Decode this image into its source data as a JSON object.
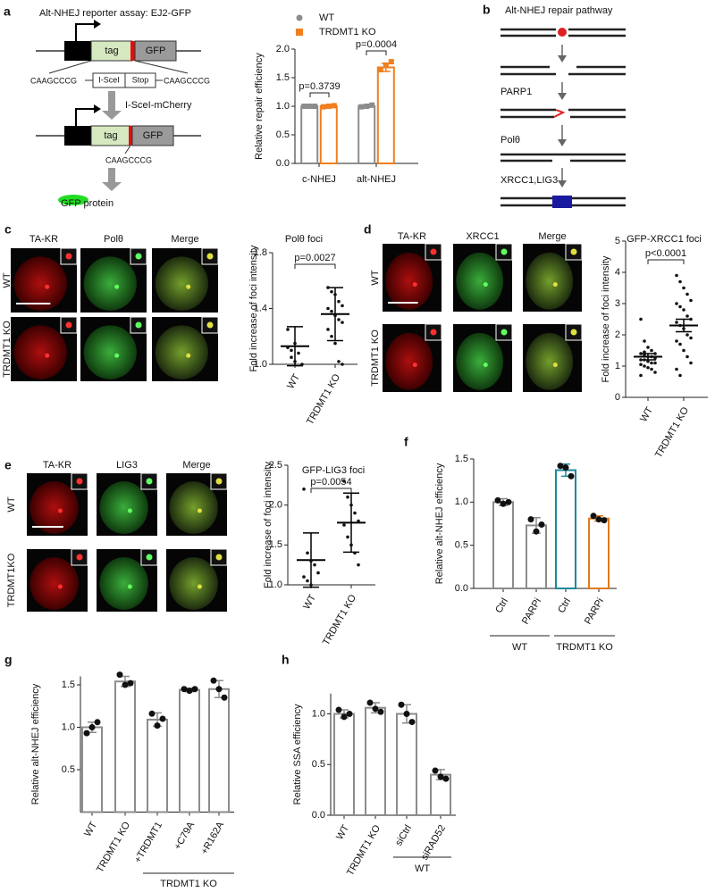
{
  "panel_letters": [
    "a",
    "b",
    "c",
    "d",
    "e",
    "f",
    "g",
    "h"
  ],
  "reporter": {
    "title": "Alt-NHEJ reporter assay: EJ2-GFP",
    "tag": "tag",
    "gfp": "GFP",
    "seq_left": "CAAGCCCG",
    "site": "I-SceI",
    "stop": "Stop",
    "seq_right": "CAAGCCCG",
    "enzyme": "I-SceI-mCherry",
    "tag2": "tag",
    "gfp2": "GFP",
    "seq_joined": "CAAGCCCG",
    "protein": "GFP protein"
  },
  "pathway": {
    "title": "Alt-NHEJ repair pathway",
    "steps": [
      "PARP1",
      "Polθ",
      "XRCC1,LIG3"
    ]
  },
  "imaging": [
    {
      "columns": [
        "TA-KR",
        "Polθ",
        "Merge"
      ],
      "rows": [
        "WT",
        "TRDMT1 KO"
      ]
    },
    {
      "columns": [
        "TA-KR",
        "XRCC1",
        "Merge"
      ],
      "rows": [
        "WT",
        "TRDMT1 KO"
      ]
    },
    {
      "columns": [
        "TA-KR",
        "LIG3",
        "Merge"
      ],
      "rows": [
        "WT",
        "TRDMT1KO"
      ]
    }
  ],
  "chart_data": [
    {
      "type": "bar",
      "ylabel": "Relative repair efficiency",
      "categories": [
        "c-NHEJ",
        "alt-NHEJ"
      ],
      "series": [
        {
          "name": "WT",
          "color": "#8c8c8c",
          "values": [
            1.0,
            1.0
          ],
          "errors": [
            0.02,
            0.02
          ],
          "points": [
            [
              1.0,
              1.0,
              1.0
            ],
            [
              0.99,
              1.0,
              1.02
            ]
          ]
        },
        {
          "name": "TRDMT1 KO",
          "color": "#f07f1e",
          "values": [
            1.0,
            1.68
          ],
          "errors": [
            0.02,
            0.07
          ],
          "points": [
            [
              0.99,
              1.0,
              1.01
            ],
            [
              1.64,
              1.72,
              1.78
            ]
          ]
        }
      ],
      "ylim": [
        0,
        2
      ],
      "yticks": [
        {
          "value": 0,
          "label": "0.0"
        },
        0.5,
        {
          "value": 1,
          "label": "1.0"
        },
        1.5,
        {
          "value": 2,
          "label": "2.0"
        }
      ],
      "annotations": [
        "p=0.3739",
        "p=0.0004"
      ],
      "legend": "top"
    },
    {
      "type": "dot",
      "title": "Polθ  foci",
      "ylabel": "Fold increase of foci intensity",
      "categories": [
        "WT",
        "TRDMT1 KO"
      ],
      "series": [
        {
          "color": "#000000",
          "values": [
            1.13,
            1.36
          ],
          "errors": [
            0.14,
            0.19
          ],
          "points": [
            [
              1.25,
              1.1,
              1.02,
              1.08,
              1.0,
              1.12,
              1.05,
              1.15
            ],
            [
              1.55,
              1.52,
              1.5,
              1.45,
              1.42,
              1.4,
              1.38,
              1.35,
              1.32,
              1.3,
              1.25,
              1.2,
              1.15,
              1.02,
              1.0
            ]
          ]
        }
      ],
      "ylim": [
        1.0,
        1.8
      ],
      "yticks": [
        {
          "value": 1,
          "label": "1.0"
        },
        1.4,
        1.8
      ],
      "annotations": [
        "p=0.0027"
      ]
    },
    {
      "type": "dot",
      "title": "GFP-XRCC1 foci",
      "ylabel": "Fold increase of foci intensity",
      "categories": [
        "WT",
        "TRDMT1 KO"
      ],
      "series": [
        {
          "color": "#000000",
          "values": [
            1.3,
            2.3
          ],
          "errors": [
            0.1,
            0.2
          ],
          "points": [
            [
              2.5,
              1.8,
              1.6,
              1.5,
              1.4,
              1.4,
              1.35,
              1.3,
              1.3,
              1.25,
              1.2,
              1.2,
              1.15,
              1.1,
              1.1,
              1.05,
              1.0,
              0.95,
              0.9,
              0.8,
              0.7,
              1.45
            ],
            [
              3.9,
              3.7,
              3.5,
              3.3,
              3.1,
              3.0,
              2.9,
              2.8,
              2.6,
              2.5,
              2.4,
              2.3,
              2.2,
              2.0,
              1.9,
              1.8,
              1.7,
              1.5,
              1.3,
              1.1,
              0.9,
              0.7
            ]
          ]
        }
      ],
      "ylim": [
        0,
        5
      ],
      "yticks": [
        0,
        1,
        2,
        3,
        4,
        5
      ],
      "annotations": [
        "p<0.0001"
      ]
    },
    {
      "type": "dot",
      "title": "GFP-LIG3 foci",
      "ylabel": "Fold increase of foci intensity",
      "categories": [
        "WT",
        "TRDMT1 KO"
      ],
      "series": [
        {
          "color": "#000000",
          "values": [
            1.31,
            1.78
          ],
          "errors": [
            0.34,
            0.37
          ],
          "points": [
            [
              2.2,
              1.4,
              1.3,
              1.25,
              1.15,
              1.1,
              1.05,
              1.0
            ],
            [
              2.3,
              2.1,
              2.0,
              1.9,
              1.8,
              1.75,
              1.6,
              1.5,
              1.4,
              1.25
            ]
          ]
        }
      ],
      "ylim": [
        1.0,
        2.5
      ],
      "yticks": [
        {
          "value": 1,
          "label": "1.0"
        },
        1.5,
        {
          "value": 2,
          "label": "2.0"
        },
        2.5
      ],
      "annotations": [
        "p=0.0054"
      ]
    },
    {
      "type": "bar",
      "ylabel": "Relative alt-NHEJ efficiency",
      "categories": [
        "Ctrl",
        "PARPi",
        "Ctrl",
        "PARPi"
      ],
      "series": [
        {
          "colors": [
            "#8c8c8c",
            "#8c8c8c",
            "#1b8a9a",
            "#e07b1a"
          ],
          "values": [
            1.0,
            0.73,
            1.37,
            0.81
          ],
          "errors": [
            0.04,
            0.09,
            0.07,
            0.03
          ],
          "points": [
            [
              1.02,
              0.98,
              1.0
            ],
            [
              0.8,
              0.66,
              0.74
            ],
            [
              1.42,
              1.4,
              1.3
            ],
            [
              0.84,
              0.8,
              0.79
            ]
          ]
        }
      ],
      "ylim": [
        0,
        1.5
      ],
      "yticks": [
        {
          "value": 0,
          "label": "0.0"
        },
        0.5,
        {
          "value": 1,
          "label": "1.0"
        },
        1.5
      ],
      "groups": [
        {
          "label": "WT"
        },
        {
          "label": "TRDMT1 KO"
        }
      ]
    },
    {
      "type": "bar",
      "ylabel": "Relative alt-NHEJ efficiency",
      "categories": [
        "WT",
        "TRDMT1 KO",
        "+TRDMT1",
        "+C79A",
        "+R162A"
      ],
      "series": [
        {
          "color": "#8c8c8c",
          "values": [
            1.0,
            1.54,
            1.09,
            1.44,
            1.45
          ],
          "errors": [
            0.06,
            0.06,
            0.08,
            0.02,
            0.1
          ],
          "points": [
            [
              0.93,
              1.0,
              1.06
            ],
            [
              1.62,
              1.5,
              1.52
            ],
            [
              1.16,
              1.02,
              1.1
            ],
            [
              1.45,
              1.43,
              1.45
            ],
            [
              1.55,
              1.45,
              1.35
            ]
          ]
        }
      ],
      "ylim": [
        0,
        1.6
      ],
      "yticks": [
        0.5,
        {
          "value": 1,
          "label": "1.0"
        },
        1.5
      ],
      "groups": [
        {
          "label": "TRDMT1 KO"
        }
      ]
    },
    {
      "type": "bar",
      "ylabel": "Relative SSA efficiency",
      "categories": [
        "WT",
        "TRDMT1 KO",
        "siCtrl",
        "siRAD52"
      ],
      "series": [
        {
          "color": "#8c8c8c",
          "values": [
            1.0,
            1.06,
            1.0,
            0.4
          ],
          "errors": [
            0.04,
            0.05,
            0.09,
            0.05
          ],
          "points": [
            [
              1.04,
              0.97,
              1.0
            ],
            [
              1.11,
              1.05,
              1.02
            ],
            [
              1.09,
              1.0,
              0.92
            ],
            [
              0.44,
              0.38,
              0.36
            ]
          ]
        }
      ],
      "ylim": [
        0,
        1.2
      ],
      "yticks": [
        {
          "value": 0,
          "label": "0.0"
        },
        0.5,
        {
          "value": 1,
          "label": "1.0"
        }
      ],
      "groups": [
        {
          "label": "WT"
        }
      ]
    }
  ]
}
